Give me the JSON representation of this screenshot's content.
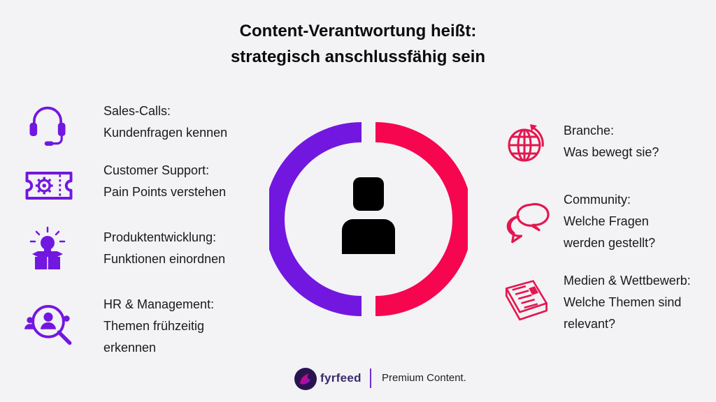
{
  "title": {
    "line1": "Content-Verantwortung heißt:",
    "line2": "strategisch anschlussfähig sein"
  },
  "left_items": [
    {
      "icon": "headset-icon",
      "line1": "Sales-Calls:",
      "line2": "Kundenfragen kennen",
      "line3": ""
    },
    {
      "icon": "support-ticket-icon",
      "line1": "Customer Support:",
      "line2": "Pain Points verstehen",
      "line3": ""
    },
    {
      "icon": "lightbulb-box-icon",
      "line1": "Produktentwicklung:",
      "line2": "Funktionen einordnen",
      "line3": ""
    },
    {
      "icon": "team-search-icon",
      "line1": "HR & Management:",
      "line2": "Themen frühzeitig",
      "line3": "erkennen"
    }
  ],
  "right_items": [
    {
      "icon": "globe-icon",
      "line1": "Branche:",
      "line2": "Was bewegt sie?",
      "line3": ""
    },
    {
      "icon": "chat-bubbles-icon",
      "line1": "Community:",
      "line2": "Welche Fragen",
      "line3": "werden gestellt?"
    },
    {
      "icon": "newspaper-icon",
      "line1": "Medien & Wettbewerb:",
      "line2": "Welche Themen sind",
      "line3": "relevant?"
    }
  ],
  "colors": {
    "purple": "#7217e0",
    "red": "#f5064f",
    "background": "#f3f2f5"
  },
  "footer": {
    "brand": "fyrfeed",
    "tagline": "Premium Content."
  }
}
